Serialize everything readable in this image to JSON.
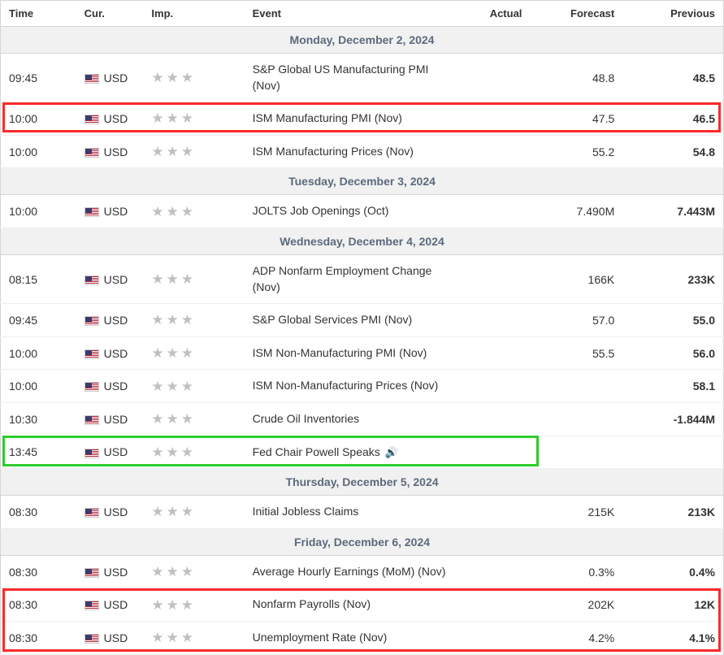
{
  "columns": {
    "time": "Time",
    "cur": "Cur.",
    "imp": "Imp.",
    "event": "Event",
    "actual": "Actual",
    "forecast": "Forecast",
    "previous": "Previous"
  },
  "colors": {
    "star_filled": "#c0c0c0",
    "highlight_red": "#ff2a2a",
    "highlight_green": "#2dcc2d",
    "day_header_bg": "#f1f1f1",
    "day_header_text": "#5b6a7d",
    "border": "#d5d5d5",
    "row_border": "#eeeeee"
  },
  "days": [
    {
      "label": "Monday, December 2, 2024",
      "events": [
        {
          "time": "09:45",
          "cur": "USD",
          "imp": 3,
          "event": "S&P Global US Manufacturing PMI (Nov)",
          "actual": "",
          "forecast": "48.8",
          "previous": "48.5",
          "highlight": null,
          "speaker": false
        },
        {
          "time": "10:00",
          "cur": "USD",
          "imp": 3,
          "event": "ISM Manufacturing PMI (Nov)",
          "actual": "",
          "forecast": "47.5",
          "previous": "46.5",
          "highlight": "red-single",
          "speaker": false
        },
        {
          "time": "10:00",
          "cur": "USD",
          "imp": 3,
          "event": "ISM Manufacturing Prices (Nov)",
          "actual": "",
          "forecast": "55.2",
          "previous": "54.8",
          "highlight": null,
          "speaker": false
        }
      ]
    },
    {
      "label": "Tuesday, December 3, 2024",
      "events": [
        {
          "time": "10:00",
          "cur": "USD",
          "imp": 3,
          "event": "JOLTS Job Openings (Oct)",
          "actual": "",
          "forecast": "7.490M",
          "previous": "7.443M",
          "highlight": null,
          "speaker": false
        }
      ]
    },
    {
      "label": "Wednesday, December 4, 2024",
      "events": [
        {
          "time": "08:15",
          "cur": "USD",
          "imp": 3,
          "event": "ADP Nonfarm Employment Change (Nov)",
          "actual": "",
          "forecast": "166K",
          "previous": "233K",
          "highlight": null,
          "speaker": false
        },
        {
          "time": "09:45",
          "cur": "USD",
          "imp": 3,
          "event": "S&P Global Services PMI (Nov)",
          "actual": "",
          "forecast": "57.0",
          "previous": "55.0",
          "highlight": null,
          "speaker": false
        },
        {
          "time": "10:00",
          "cur": "USD",
          "imp": 3,
          "event": "ISM Non-Manufacturing PMI (Nov)",
          "actual": "",
          "forecast": "55.5",
          "previous": "56.0",
          "highlight": null,
          "speaker": false
        },
        {
          "time": "10:00",
          "cur": "USD",
          "imp": 3,
          "event": "ISM Non-Manufacturing Prices (Nov)",
          "actual": "",
          "forecast": "",
          "previous": "58.1",
          "highlight": null,
          "speaker": false
        },
        {
          "time": "10:30",
          "cur": "USD",
          "imp": 3,
          "event": "Crude Oil Inventories",
          "actual": "",
          "forecast": "",
          "previous": "-1.844M",
          "highlight": null,
          "speaker": false
        },
        {
          "time": "13:45",
          "cur": "USD",
          "imp": 3,
          "event": "Fed Chair Powell Speaks",
          "actual": "",
          "forecast": "",
          "previous": "",
          "highlight": "green-single",
          "speaker": true
        }
      ]
    },
    {
      "label": "Thursday, December 5, 2024",
      "events": [
        {
          "time": "08:30",
          "cur": "USD",
          "imp": 3,
          "event": "Initial Jobless Claims",
          "actual": "",
          "forecast": "215K",
          "previous": "213K",
          "highlight": null,
          "speaker": false
        }
      ]
    },
    {
      "label": "Friday, December 6, 2024",
      "events": [
        {
          "time": "08:30",
          "cur": "USD",
          "imp": 3,
          "event": "Average Hourly Earnings (MoM) (Nov)",
          "actual": "",
          "forecast": "0.3%",
          "previous": "0.4%",
          "highlight": null,
          "speaker": false
        },
        {
          "time": "08:30",
          "cur": "USD",
          "imp": 3,
          "event": "Nonfarm Payrolls (Nov)",
          "actual": "",
          "forecast": "202K",
          "previous": "12K",
          "highlight": "red-group-start",
          "speaker": false
        },
        {
          "time": "08:30",
          "cur": "USD",
          "imp": 3,
          "event": "Unemployment Rate (Nov)",
          "actual": "",
          "forecast": "4.2%",
          "previous": "4.1%",
          "highlight": "red-group-end",
          "speaker": false
        }
      ]
    }
  ]
}
